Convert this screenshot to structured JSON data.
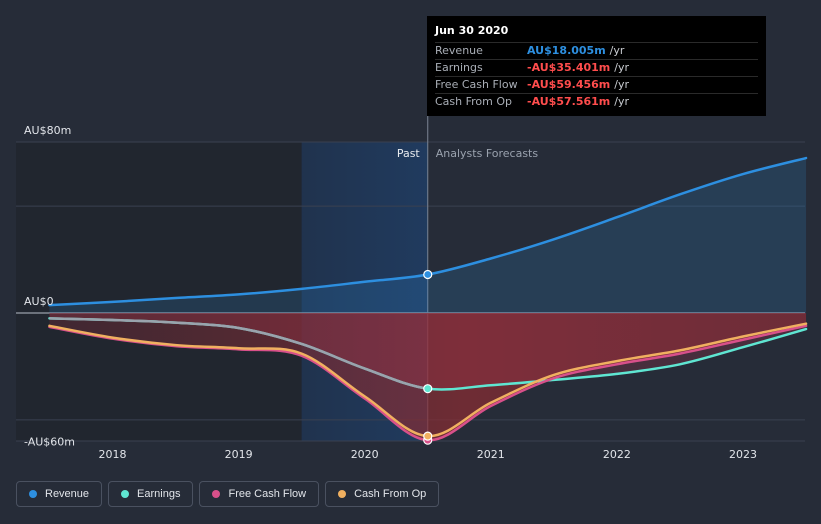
{
  "tooltip": {
    "date": "Jun 30 2020",
    "rows": [
      {
        "label": "Revenue",
        "value": "AU$18.005m",
        "unit": "/yr",
        "color": "#2d8fe0"
      },
      {
        "label": "Earnings",
        "value": "-AU$35.401m",
        "unit": "/yr",
        "color": "#ff4d4d"
      },
      {
        "label": "Free Cash Flow",
        "value": "-AU$59.456m",
        "unit": "/yr",
        "color": "#ff4d4d"
      },
      {
        "label": "Cash From Op",
        "value": "-AU$57.561m",
        "unit": "/yr",
        "color": "#ff4d4d"
      }
    ]
  },
  "legend": [
    {
      "label": "Revenue",
      "color": "#2d8fe0"
    },
    {
      "label": "Earnings",
      "color": "#5fe6d2"
    },
    {
      "label": "Free Cash Flow",
      "color": "#d8508a"
    },
    {
      "label": "Cash From Op",
      "color": "#f0b060"
    }
  ],
  "chart_data": {
    "type": "line",
    "title": "",
    "xlabel": "",
    "ylabel": "",
    "ylim": [
      -60,
      80
    ],
    "xlim": [
      2017.5,
      2023.5
    ],
    "y_tick_labels": [
      {
        "value": 80,
        "label": "AU$80m"
      },
      {
        "value": 0,
        "label": "AU$0"
      },
      {
        "value": -60,
        "label": "-AU$60m"
      }
    ],
    "x_ticks": [
      2018,
      2019,
      2020,
      2021,
      2022,
      2023
    ],
    "x_tick_labels": [
      "2018",
      "2019",
      "2020",
      "2021",
      "2022",
      "2023"
    ],
    "gridlines_y": [
      80,
      50,
      0,
      -50
    ],
    "divider_x": 2020.5,
    "shade_start_x": 2019.5,
    "past_label": "Past",
    "forecast_label": "Analysts Forecasts",
    "series": [
      {
        "name": "Revenue",
        "color": "#2d8fe0",
        "x": [
          2017.5,
          2018,
          2018.5,
          2019,
          2019.5,
          2020,
          2020.5,
          2021,
          2021.5,
          2022,
          2022.5,
          2023,
          2023.5
        ],
        "values": [
          3.7,
          5.2,
          7.0,
          8.7,
          11.3,
          14.6,
          18.0,
          25.5,
          34.5,
          44.8,
          55.5,
          65.0,
          72.5
        ],
        "marker_x": 2020.5,
        "marker_value": 18.0
      },
      {
        "name": "Earnings",
        "color": "#5fe6d2",
        "x": [
          2017.5,
          2018,
          2018.5,
          2019,
          2019.5,
          2020,
          2020.5,
          2021,
          2021.5,
          2022,
          2022.5,
          2023,
          2023.5
        ],
        "values": [
          -2.5,
          -3.3,
          -4.5,
          -7.0,
          -14.5,
          -26.0,
          -35.4,
          -33.8,
          -31.3,
          -28.5,
          -24.0,
          -16.0,
          -7.5
        ],
        "marker_x": 2020.5,
        "marker_value": -35.4
      },
      {
        "name": "Free Cash Flow",
        "color": "#d8508a",
        "x": [
          2017.5,
          2018,
          2018.5,
          2019,
          2019.5,
          2020,
          2020.5,
          2021,
          2021.5,
          2022,
          2022.5,
          2023,
          2023.5
        ],
        "values": [
          -6.5,
          -12.0,
          -15.5,
          -17.0,
          -20.0,
          -40.0,
          -59.5,
          -43.5,
          -30.5,
          -24.0,
          -19.0,
          -12.5,
          -6.0
        ],
        "marker_x": 2020.5,
        "marker_value": -59.5
      },
      {
        "name": "Cash From Op",
        "color": "#f0b060",
        "x": [
          2017.5,
          2018,
          2018.5,
          2019,
          2019.5,
          2020,
          2020.5,
          2021,
          2021.5,
          2022,
          2022.5,
          2023,
          2023.5
        ],
        "values": [
          -6.0,
          -11.5,
          -15.0,
          -16.5,
          -19.0,
          -39.0,
          -57.6,
          -42.0,
          -29.0,
          -22.5,
          -17.5,
          -11.0,
          -5.0
        ],
        "marker_x": 2020.5,
        "marker_value": -57.6
      }
    ]
  }
}
